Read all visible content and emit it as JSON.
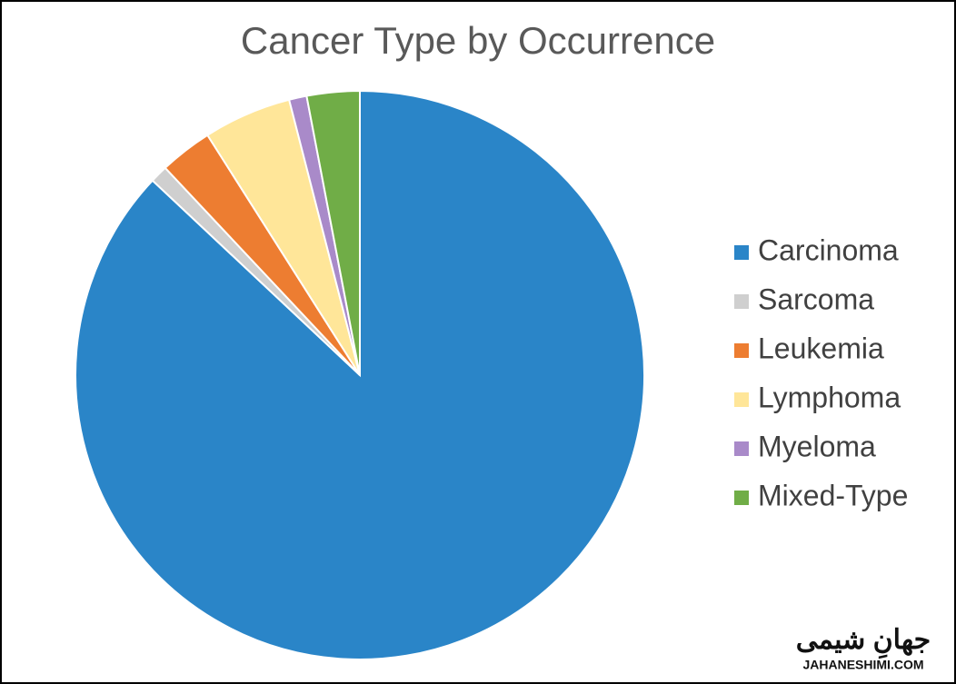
{
  "chart_data": {
    "type": "pie",
    "title": "Cancer Type by Occurrence",
    "categories": [
      "Carcinoma",
      "Sarcoma",
      "Leukemia",
      "Lymphoma",
      "Myeloma",
      "Mixed-Type"
    ],
    "values": [
      87,
      1,
      3,
      5,
      1,
      3
    ],
    "colors": [
      "#2a85c8",
      "#cfcfcf",
      "#ed7d31",
      "#ffe699",
      "#a98ac9",
      "#70ad47"
    ],
    "legend": "right"
  },
  "watermark": {
    "logo": "جهانِ شیمی",
    "url": "JAHANESHIMI.COM"
  }
}
